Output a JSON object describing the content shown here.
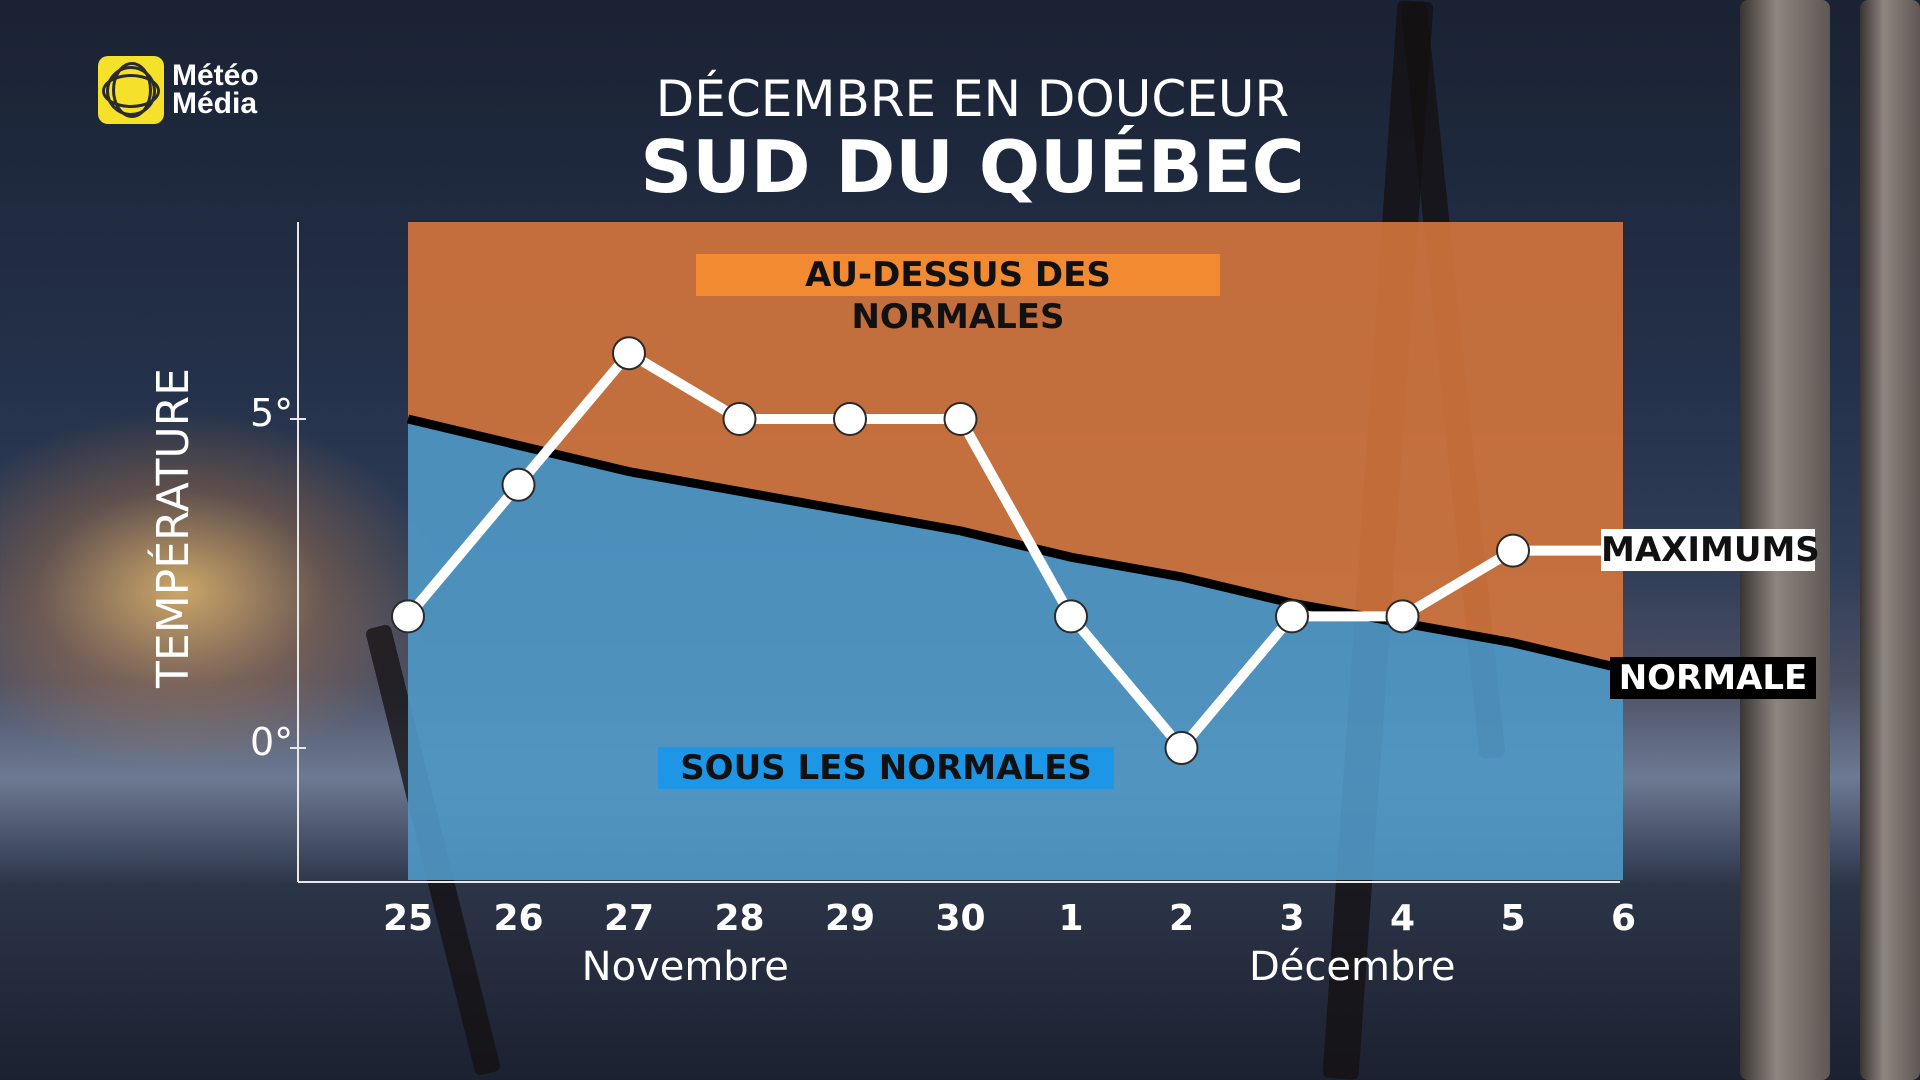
{
  "logo": {
    "line1": "Météo",
    "line2": "Média"
  },
  "title_line1": "DÉCEMBRE EN DOUCEUR",
  "title_line2": "SUD DU QUÉBEC",
  "colors": {
    "above": "#d5763c",
    "below": "#4f97c4",
    "maximums_line": "#ffffff",
    "normale_line": "#000000"
  },
  "chart_data": {
    "type": "line",
    "ylabel": "TEMPÉRATURE",
    "yticks": [
      {
        "value": 5,
        "label": "5°"
      },
      {
        "value": 0,
        "label": "0°"
      }
    ],
    "categories": [
      "25",
      "26",
      "27",
      "28",
      "29",
      "30",
      "1",
      "2",
      "3",
      "4",
      "5",
      "6"
    ],
    "months": [
      {
        "label": "Novembre"
      },
      {
        "label": "Décembre"
      }
    ],
    "series": [
      {
        "name": "MAXIMUMS",
        "values": [
          2,
          4,
          6,
          5,
          5,
          5,
          2,
          0,
          2,
          2,
          3,
          3
        ]
      },
      {
        "name": "NORMALE",
        "values": [
          5,
          4.6,
          4.2,
          3.9,
          3.6,
          3.3,
          2.9,
          2.6,
          2.2,
          1.9,
          1.6,
          1.2
        ]
      }
    ],
    "annotations": {
      "above": "AU-DESSUS DES NORMALES",
      "below": "SOUS LES NORMALES"
    },
    "legend_placement": "right"
  }
}
